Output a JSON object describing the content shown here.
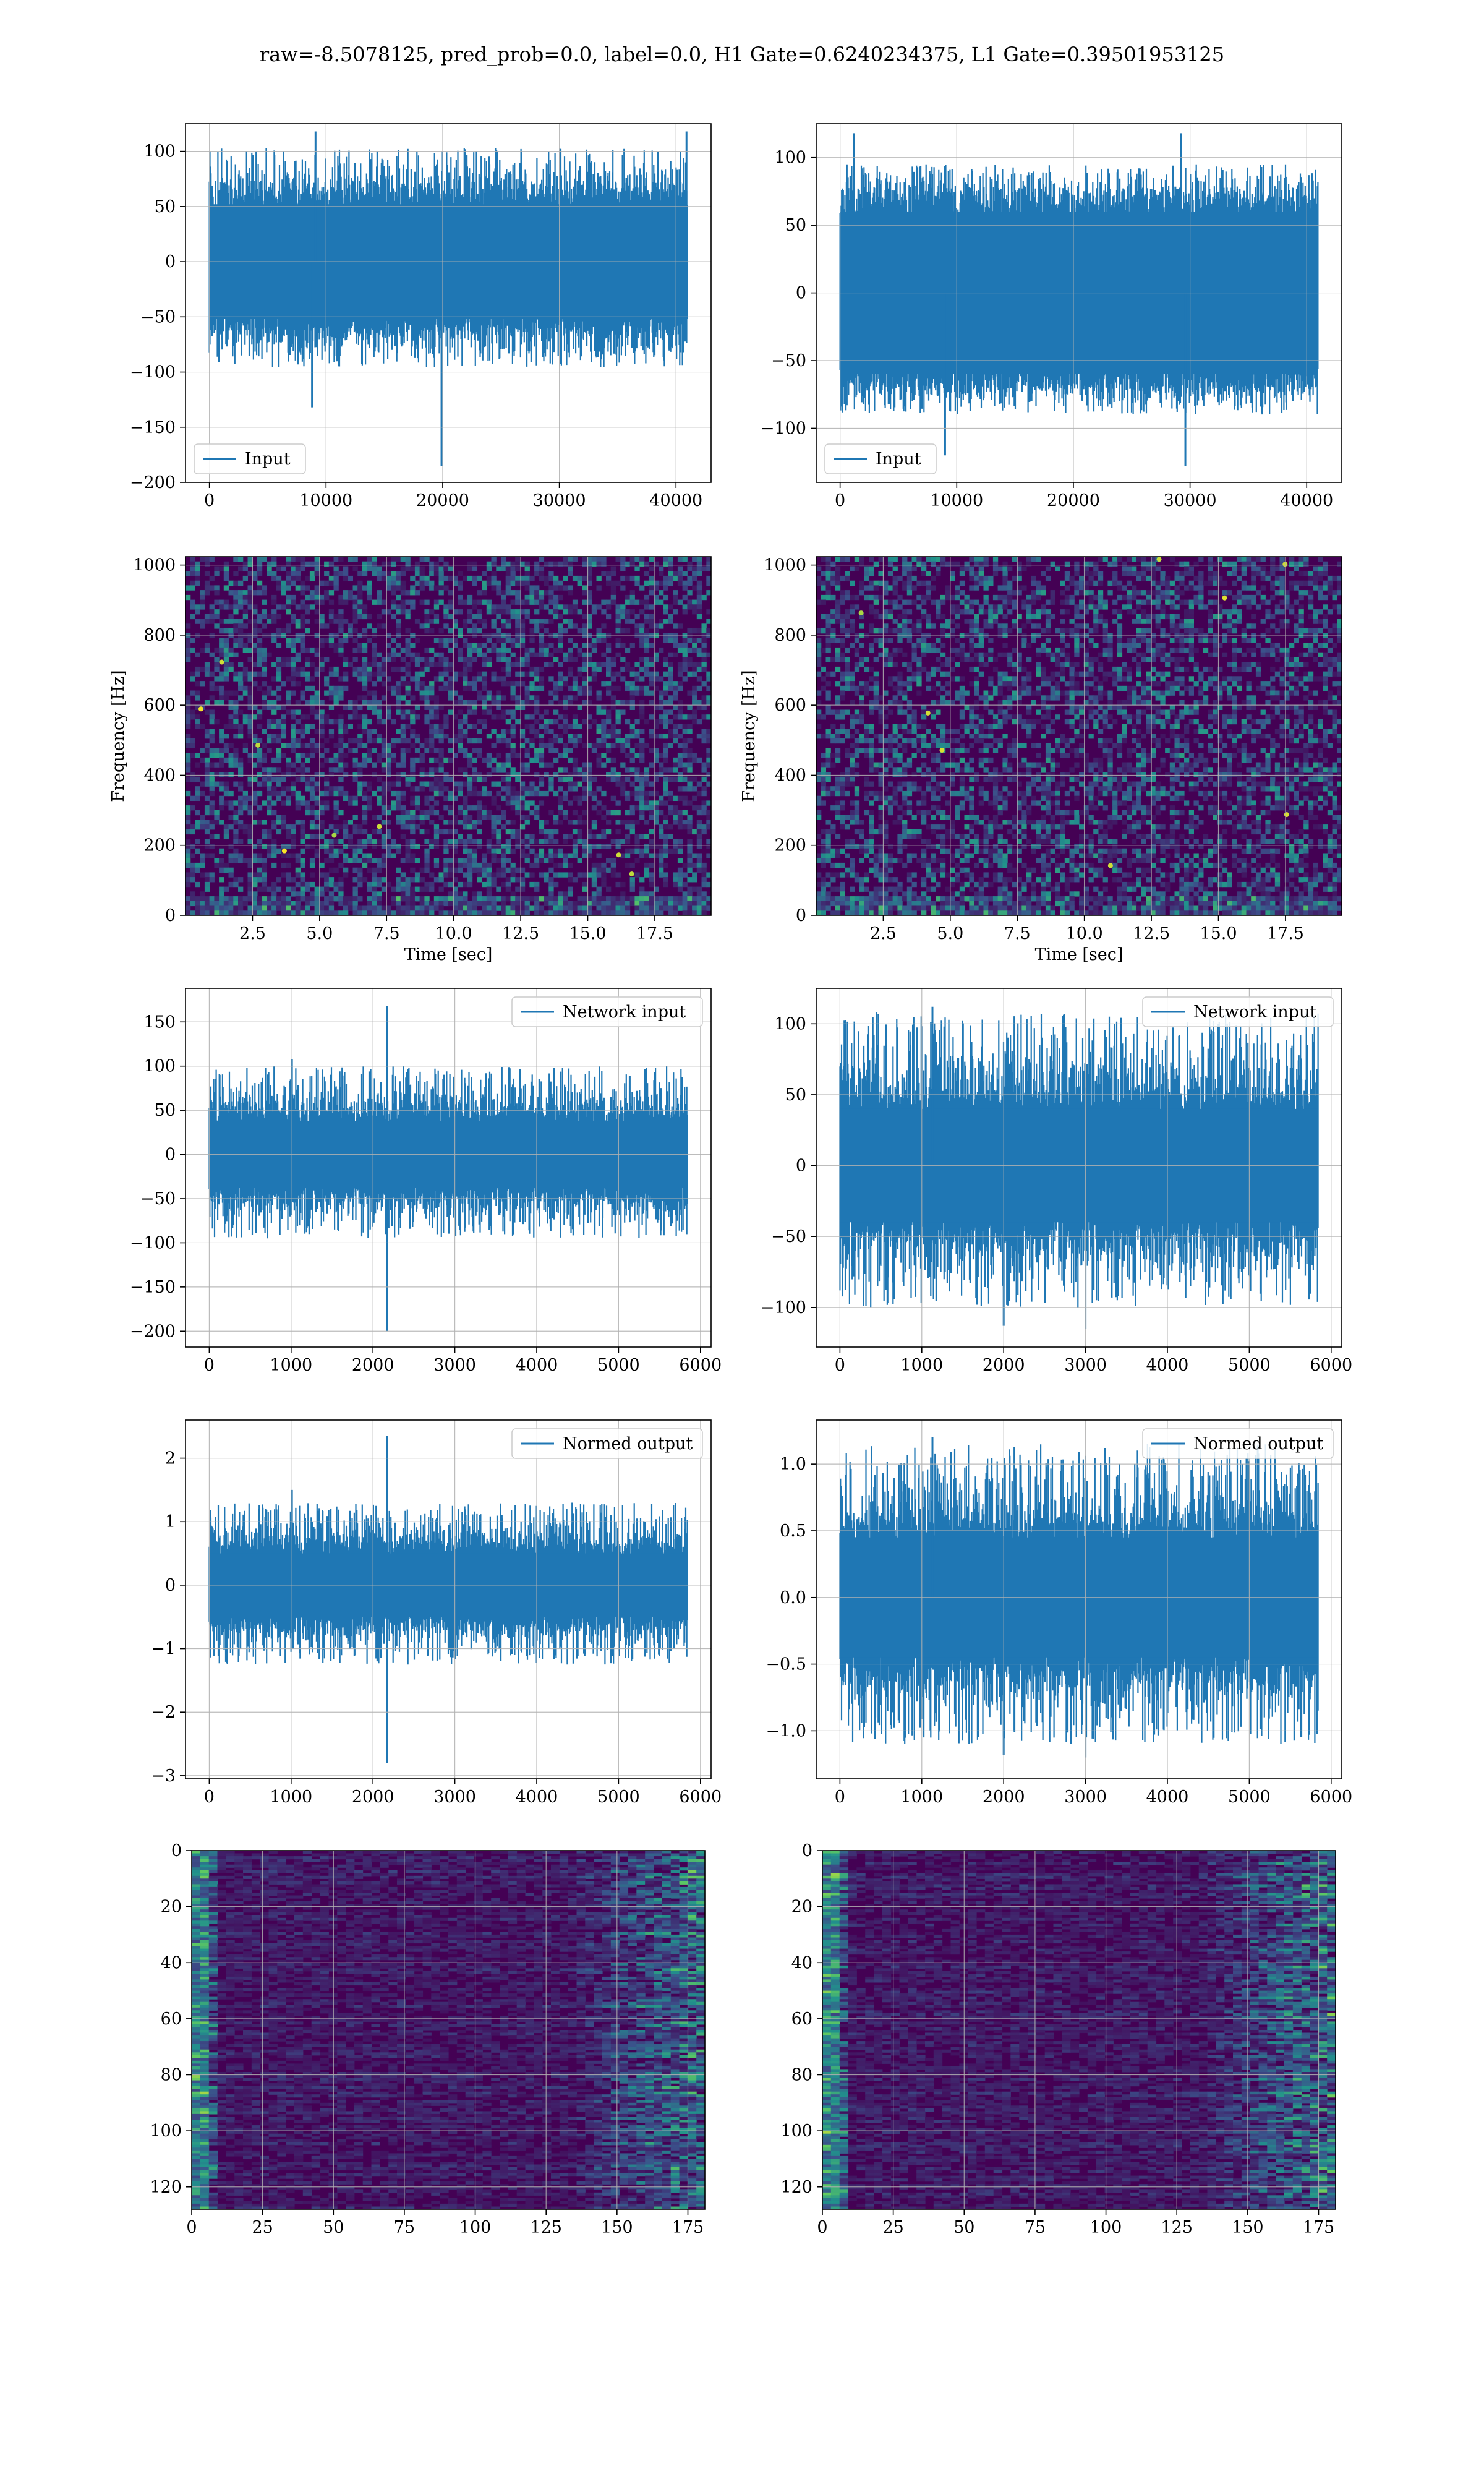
{
  "figure": {
    "title": "raw=-8.5078125, pred_prob=0.0, label=0.0, H1 Gate=0.6240234375, L1 Gate=0.39501953125"
  },
  "colors": {
    "series": "#1f77b4",
    "grid": "#b0b0b0",
    "viridis_low": "#440154",
    "viridis_mid": "#21918c",
    "viridis_high": "#fde725"
  },
  "chart_data": [
    {
      "id": "input-h1",
      "type": "line",
      "title": "",
      "xlabel": "",
      "ylabel": "",
      "legend": "Input",
      "legend_loc": "lower left",
      "xlim": [
        -2048,
        43008
      ],
      "ylim": [
        -200,
        125
      ],
      "xticks": [
        0,
        10000,
        20000,
        30000,
        40000
      ],
      "yticks": [
        -200,
        -150,
        -100,
        -50,
        0,
        50,
        100
      ],
      "n_samples": 40960,
      "envelope_min": -96,
      "envelope_max": 103,
      "core_halfwidth": 52,
      "spikes": [
        {
          "x": 19900,
          "y": -185
        },
        {
          "x": 9100,
          "y": 118
        },
        {
          "x": 40900,
          "y": 118
        },
        {
          "x": 8800,
          "y": -132
        }
      ],
      "grid": true
    },
    {
      "id": "input-l1",
      "type": "line",
      "title": "",
      "xlabel": "",
      "ylabel": "",
      "legend": "Input",
      "legend_loc": "lower left",
      "xlim": [
        -2048,
        43008
      ],
      "ylim": [
        -140,
        125
      ],
      "xticks": [
        0,
        10000,
        20000,
        30000,
        40000
      ],
      "yticks": [
        -100,
        -50,
        0,
        50,
        100
      ],
      "n_samples": 40960,
      "envelope_min": -90,
      "envelope_max": 95,
      "core_halfwidth": 60,
      "spikes": [
        {
          "x": 29600,
          "y": -128
        },
        {
          "x": 9000,
          "y": -120
        },
        {
          "x": 1200,
          "y": 118
        },
        {
          "x": 29200,
          "y": 118
        }
      ],
      "grid": true
    },
    {
      "id": "spec-h1",
      "type": "heatmap",
      "title": "",
      "xlabel": "Time [sec]",
      "ylabel": "Frequency [Hz]",
      "xlim": [
        0,
        19.6
      ],
      "ylim": [
        0,
        1024
      ],
      "xticks": [
        2.5,
        5.0,
        7.5,
        10.0,
        12.5,
        15.0,
        17.5
      ],
      "yticks": [
        0,
        200,
        400,
        600,
        800,
        1000
      ],
      "colormap": "viridis",
      "grid": true
    },
    {
      "id": "spec-l1",
      "type": "heatmap",
      "title": "",
      "xlabel": "Time [sec]",
      "ylabel": "Frequency [Hz]",
      "xlim": [
        0,
        19.6
      ],
      "ylim": [
        0,
        1024
      ],
      "xticks": [
        2.5,
        5.0,
        7.5,
        10.0,
        12.5,
        15.0,
        17.5
      ],
      "yticks": [
        0,
        200,
        400,
        600,
        800,
        1000
      ],
      "colormap": "viridis",
      "grid": true
    },
    {
      "id": "net-h1",
      "type": "line",
      "title": "",
      "xlabel": "",
      "ylabel": "",
      "legend": "Network input",
      "legend_loc": "upper right",
      "xlim": [
        -290,
        6130
      ],
      "ylim": [
        -218,
        188
      ],
      "xticks": [
        0,
        1000,
        2000,
        3000,
        4000,
        5000,
        6000
      ],
      "yticks": [
        -200,
        -150,
        -100,
        -50,
        0,
        50,
        100,
        150
      ],
      "n_samples": 5840,
      "envelope_min": -95,
      "envelope_max": 100,
      "core_halfwidth": 38,
      "spikes": [
        {
          "x": 2170,
          "y": 168
        },
        {
          "x": 2175,
          "y": -200
        },
        {
          "x": 1010,
          "y": 108
        }
      ],
      "grid": true
    },
    {
      "id": "net-l1",
      "type": "line",
      "title": "",
      "xlabel": "",
      "ylabel": "",
      "legend": "Network input",
      "legend_loc": "upper right",
      "xlim": [
        -290,
        6130
      ],
      "ylim": [
        -128,
        125
      ],
      "xticks": [
        0,
        1000,
        2000,
        3000,
        4000,
        5000,
        6000
      ],
      "yticks": [
        -100,
        -50,
        0,
        50,
        100
      ],
      "n_samples": 5840,
      "envelope_min": -100,
      "envelope_max": 108,
      "core_halfwidth": 40,
      "spikes": [
        {
          "x": 2000,
          "y": -113
        },
        {
          "x": 3000,
          "y": -115
        },
        {
          "x": 1130,
          "y": 112
        }
      ],
      "grid": true
    },
    {
      "id": "norm-h1",
      "type": "line",
      "title": "",
      "xlabel": "",
      "ylabel": "",
      "legend": "Normed output",
      "legend_loc": "upper right",
      "xlim": [
        -290,
        6130
      ],
      "ylim": [
        -3.05,
        2.6
      ],
      "xticks": [
        0,
        1000,
        2000,
        3000,
        4000,
        5000,
        6000
      ],
      "yticks": [
        -3,
        -2,
        -1,
        0,
        1,
        2
      ],
      "n_samples": 5840,
      "envelope_min": -1.25,
      "envelope_max": 1.3,
      "core_halfwidth": 0.5,
      "spikes": [
        {
          "x": 2170,
          "y": 2.35
        },
        {
          "x": 2175,
          "y": -2.8
        },
        {
          "x": 1010,
          "y": 1.5
        }
      ],
      "grid": true
    },
    {
      "id": "norm-l1",
      "type": "line",
      "title": "",
      "xlabel": "",
      "ylabel": "",
      "legend": "Normed output",
      "legend_loc": "upper right",
      "xlim": [
        -290,
        6130
      ],
      "ylim": [
        -1.36,
        1.33
      ],
      "xticks": [
        0,
        1000,
        2000,
        3000,
        4000,
        5000,
        6000
      ],
      "yticks": [
        -1.0,
        -0.5,
        0.0,
        0.5,
        1.0
      ],
      "n_samples": 5840,
      "envelope_min": -1.1,
      "envelope_max": 1.15,
      "core_halfwidth": 0.45,
      "spikes": [
        {
          "x": 2000,
          "y": -1.18
        },
        {
          "x": 3000,
          "y": -1.2
        },
        {
          "x": 1130,
          "y": 1.2
        }
      ],
      "grid": true
    },
    {
      "id": "feat-h1",
      "type": "heatmap",
      "title": "",
      "xlabel": "",
      "ylabel": "",
      "xlim": [
        0,
        181
      ],
      "ylim": [
        128,
        0
      ],
      "xticks": [
        0,
        25,
        50,
        75,
        100,
        125,
        150,
        175
      ],
      "yticks": [
        0,
        20,
        40,
        60,
        80,
        100,
        120
      ],
      "rows": 128,
      "cols": 181,
      "colormap": "viridis",
      "grid": true
    },
    {
      "id": "feat-l1",
      "type": "heatmap",
      "title": "",
      "xlabel": "",
      "ylabel": "",
      "xlim": [
        0,
        181
      ],
      "ylim": [
        128,
        0
      ],
      "xticks": [
        0,
        25,
        50,
        75,
        100,
        125,
        150,
        175
      ],
      "yticks": [
        0,
        20,
        40,
        60,
        80,
        100,
        120
      ],
      "rows": 128,
      "cols": 181,
      "colormap": "viridis",
      "grid": true
    }
  ]
}
